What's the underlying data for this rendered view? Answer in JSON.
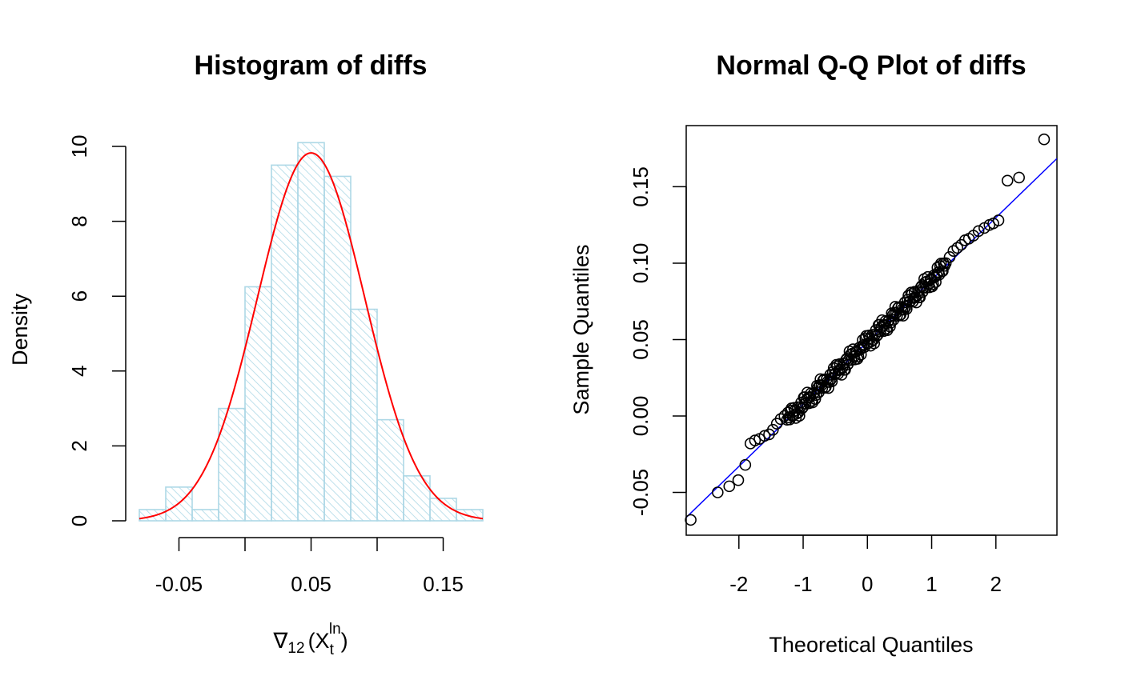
{
  "chart_data": [
    {
      "type": "bar",
      "title": "Histogram of diffs",
      "xlabel": {
        "base": "∇",
        "sub": "12",
        "open": "(X",
        "t_sub": "t",
        "sup": "ln",
        "close": ")"
      },
      "ylabel": "Density",
      "bin_edges": [
        -0.08,
        -0.06,
        -0.04,
        -0.02,
        0.0,
        0.02,
        0.04,
        0.06,
        0.08,
        0.1,
        0.12,
        0.14,
        0.16,
        0.18
      ],
      "values": [
        0.3,
        0.9,
        0.3,
        3.0,
        6.25,
        9.5,
        10.1,
        9.2,
        5.65,
        2.7,
        1.2,
        0.6,
        0.3
      ],
      "density_curve": {
        "name": "Normal density",
        "mean": 0.05,
        "sd": 0.0406,
        "color": "#ff0000"
      },
      "xlim": [
        -0.08,
        0.18
      ],
      "ylim": [
        0,
        10
      ],
      "x_ticks": [
        -0.05,
        0.0,
        0.05,
        0.1,
        0.15
      ],
      "x_tick_labels": [
        "-0.05",
        "",
        "0.05",
        "",
        "0.15"
      ],
      "y_ticks": [
        0,
        2,
        4,
        6,
        8,
        10
      ],
      "y_tick_labels": [
        "0",
        "2",
        "4",
        "6",
        "8",
        "10"
      ],
      "bar_color": "#add8e6",
      "grid": false
    },
    {
      "type": "scatter",
      "title": "Normal Q-Q Plot of diffs",
      "xlabel": "Theoretical Quantiles",
      "ylabel": "Sample Quantiles",
      "xlim": [
        -2.82,
        2.95
      ],
      "ylim": [
        -0.078,
        0.19
      ],
      "x_ticks": [
        -2,
        -1,
        0,
        1,
        2
      ],
      "x_tick_labels": [
        "-2",
        "-1",
        "0",
        "1",
        "2"
      ],
      "y_ticks": [
        -0.05,
        0.0,
        0.05,
        0.1,
        0.15
      ],
      "y_tick_labels": [
        "-0.05",
        "0.00",
        "0.05",
        "0.10",
        "0.15"
      ],
      "reference_line": {
        "intercept": 0.0484,
        "slope": 0.0407,
        "color": "#0000ff"
      },
      "points_tail_low": [
        {
          "x": -2.75,
          "y": -0.068
        },
        {
          "x": -2.33,
          "y": -0.05
        },
        {
          "x": -2.15,
          "y": -0.046
        },
        {
          "x": -2.01,
          "y": -0.042
        },
        {
          "x": -1.9,
          "y": -0.032
        },
        {
          "x": -1.82,
          "y": -0.018
        },
        {
          "x": -1.75,
          "y": -0.016
        },
        {
          "x": -1.68,
          "y": -0.015
        },
        {
          "x": -1.6,
          "y": -0.013
        },
        {
          "x": -1.53,
          "y": -0.012
        },
        {
          "x": -1.47,
          "y": -0.009
        },
        {
          "x": -1.41,
          "y": -0.005
        },
        {
          "x": -1.35,
          "y": -0.002
        },
        {
          "x": -1.29,
          "y": 0.0
        }
      ],
      "points_tail_high": [
        {
          "x": 1.22,
          "y": 0.1
        },
        {
          "x": 1.28,
          "y": 0.104
        },
        {
          "x": 1.34,
          "y": 0.108
        },
        {
          "x": 1.4,
          "y": 0.11
        },
        {
          "x": 1.46,
          "y": 0.112
        },
        {
          "x": 1.52,
          "y": 0.115
        },
        {
          "x": 1.58,
          "y": 0.116
        },
        {
          "x": 1.65,
          "y": 0.118
        },
        {
          "x": 1.73,
          "y": 0.121
        },
        {
          "x": 1.82,
          "y": 0.123
        },
        {
          "x": 1.9,
          "y": 0.125
        },
        {
          "x": 1.96,
          "y": 0.126
        },
        {
          "x": 2.04,
          "y": 0.128
        },
        {
          "x": 2.18,
          "y": 0.154
        },
        {
          "x": 2.36,
          "y": 0.156
        },
        {
          "x": 2.75,
          "y": 0.181
        }
      ],
      "points_dense": {
        "x_from": -1.25,
        "x_to": 1.2,
        "count": 180,
        "intercept": 0.0484,
        "slope": 0.0407
      },
      "point_color": "#000000",
      "grid": false
    }
  ]
}
